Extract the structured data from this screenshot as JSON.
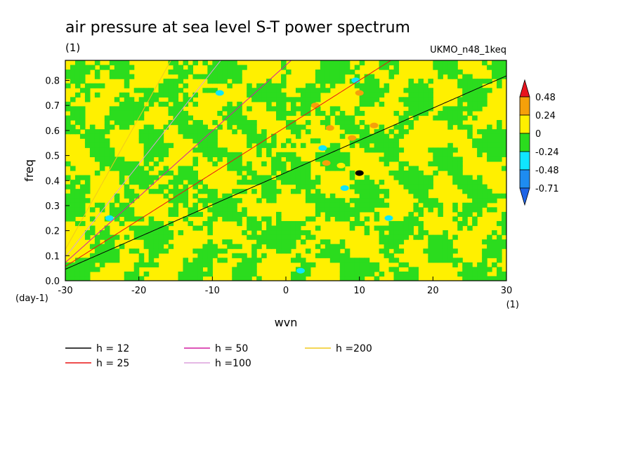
{
  "chart_data": {
    "type": "heatmap",
    "title": "air pressure at sea level S-T power spectrum",
    "subtitle_left": "(1)",
    "subtitle_right": "UKMO_n48_1keq",
    "xlabel": "wvn",
    "ylabel": "freq",
    "x_unit": "(1)",
    "y_unit": "(day-1)",
    "xlim": [
      -30,
      30
    ],
    "ylim": [
      0,
      0.88
    ],
    "x_ticks": [
      -30,
      -20,
      -10,
      0,
      10,
      20,
      30
    ],
    "y_ticks": [
      0,
      0.1,
      0.2,
      0.3,
      0.4,
      0.5,
      0.6,
      0.7,
      0.8
    ],
    "x_tick_labels": [
      "-30",
      "-20",
      "-10",
      "0",
      "10",
      "20",
      "30"
    ],
    "y_tick_labels": [
      "0.0",
      "0.1",
      "0.2",
      "0.3",
      "0.4",
      "0.5",
      "0.6",
      "0.7",
      "0.8"
    ],
    "colorbar": {
      "labels": [
        "0.48",
        "0.24",
        "0",
        "-0.24",
        "-0.48",
        "-0.71"
      ],
      "colors": [
        "#e8141e",
        "#f5a00a",
        "#fff000",
        "#2bdc1e",
        "#10e5ff",
        "#1e8cf0",
        "#1e64e6"
      ]
    },
    "series": [
      {
        "name": "h = 12",
        "color": "#000000",
        "h": 12
      },
      {
        "name": "h = 25",
        "color": "#e81414",
        "h": 25
      },
      {
        "name": "h = 50",
        "color": "#d21ea0",
        "h": 50
      },
      {
        "name": "h =100",
        "color": "#dca0dc",
        "h": 100
      },
      {
        "name": "h =200",
        "color": "#f0c81e",
        "h": 200
      }
    ]
  }
}
